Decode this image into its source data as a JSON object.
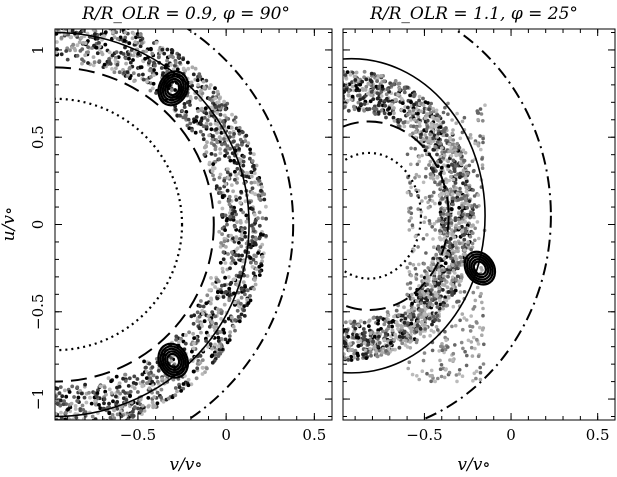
{
  "chart_data": [
    {
      "type": "scatter",
      "title": "R/R_OLR = 0.9, φ = 90°",
      "xlabel": "v/v∘",
      "ylabel": "u/v∘",
      "xlim": [
        -0.97,
        0.6
      ],
      "ylim": [
        -1.12,
        1.12
      ],
      "xticks": [
        -0.5,
        0,
        0.5
      ],
      "xtick_labels": [
        "−0.5",
        "0",
        "0.5"
      ],
      "yticks": [
        -1,
        -0.5,
        0,
        0.5,
        1
      ],
      "ytick_labels": [
        "−1",
        "−0.5",
        "0",
        "0.5",
        "1"
      ],
      "grid": false,
      "contours": [
        {
          "style": "dotted",
          "center": [
            -0.97,
            0
          ],
          "radius_x": 0.72,
          "radius_y": 0.72
        },
        {
          "style": "dashed",
          "center": [
            -0.97,
            0
          ],
          "radius_x": 0.9,
          "radius_y": 0.9
        },
        {
          "style": "solid",
          "center": [
            -0.97,
            0
          ],
          "radius_x": 1.1,
          "radius_y": 1.1
        },
        {
          "style": "dash-dot",
          "center": [
            -0.97,
            0
          ],
          "radius_x": 1.35,
          "radius_y": 1.35
        }
      ],
      "scatter_band": {
        "center": [
          -0.97,
          0
        ],
        "inner_radius": 0.93,
        "outer_radius": 1.2,
        "angle_range_deg": [
          -90,
          90
        ]
      },
      "islands": [
        [
          -0.3,
          0.78
        ],
        [
          -0.3,
          -0.78
        ]
      ]
    },
    {
      "type": "scatter",
      "title": "R/R_OLR = 1.1, φ = 25°",
      "xlabel": "v/v∘",
      "ylabel": "",
      "xlim": [
        -0.97,
        0.6
      ],
      "ylim": [
        -1.12,
        1.12
      ],
      "xticks": [
        -0.5,
        0,
        0.5
      ],
      "xtick_labels": [
        "−0.5",
        "0",
        "0.5"
      ],
      "yticks": [
        -1,
        -0.5,
        0,
        0.5,
        1
      ],
      "grid": false,
      "contours": [
        {
          "style": "dotted",
          "center": [
            -0.82,
            0.05
          ],
          "radius_x": 0.3,
          "radius_y": 0.36
        },
        {
          "style": "dashed",
          "center": [
            -0.82,
            0.05
          ],
          "radius_x": 0.46,
          "radius_y": 0.54
        },
        {
          "style": "solid",
          "center": [
            -0.92,
            0.05
          ],
          "radius_x": 0.77,
          "radius_y": 0.9
        },
        {
          "style": "dash-dot",
          "center": [
            -0.92,
            0.05
          ],
          "radius_x": 1.15,
          "radius_y": 1.25
        }
      ],
      "scatter_band": {
        "center": [
          -0.92,
          0.05
        ],
        "inner_radius": 0.6,
        "outer_radius": 0.83,
        "angle_range_deg": [
          -130,
          100
        ]
      },
      "islands": [
        [
          -0.18,
          -0.25
        ]
      ]
    }
  ]
}
